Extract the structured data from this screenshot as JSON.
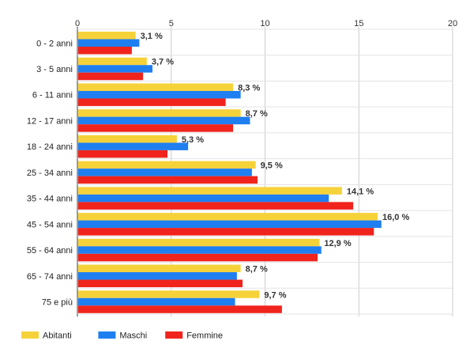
{
  "chart_data": {
    "type": "bar",
    "orientation": "horizontal",
    "categories": [
      "0 - 2 anni",
      "3 - 5 anni",
      "6 - 11 anni",
      "12 - 17 anni",
      "18 - 24 anni",
      "25 - 34 anni",
      "35 - 44 anni",
      "45 - 54 anni",
      "55 - 64 anni",
      "65 - 74 anni",
      "75 e più"
    ],
    "series": [
      {
        "name": "Abitanti",
        "color": "#f6d23a",
        "values": [
          3.1,
          3.7,
          8.3,
          8.7,
          5.3,
          9.5,
          14.1,
          16.0,
          12.9,
          8.7,
          9.7
        ]
      },
      {
        "name": "Maschi",
        "color": "#1f7ff0",
        "values": [
          3.3,
          4.0,
          8.7,
          9.2,
          5.9,
          9.3,
          13.4,
          16.2,
          13.0,
          8.5,
          8.4
        ]
      },
      {
        "name": "Femmine",
        "color": "#f0241c",
        "values": [
          2.9,
          3.5,
          7.9,
          8.3,
          4.8,
          9.6,
          14.7,
          15.8,
          12.8,
          8.8,
          10.9
        ]
      }
    ],
    "data_labels": [
      "3,1 %",
      "3,7 %",
      "8,3 %",
      "8,7 %",
      "5,3 %",
      "9,5 %",
      "14,1 %",
      "16,0 %",
      "12,9 %",
      "8,7 %",
      "9,7 %"
    ],
    "x_ticks": [
      "0",
      "5",
      "10",
      "15",
      "20"
    ],
    "xlim": [
      0,
      20
    ],
    "x_axis_position": "top",
    "grid": true,
    "legend_position": "bottom-left"
  }
}
